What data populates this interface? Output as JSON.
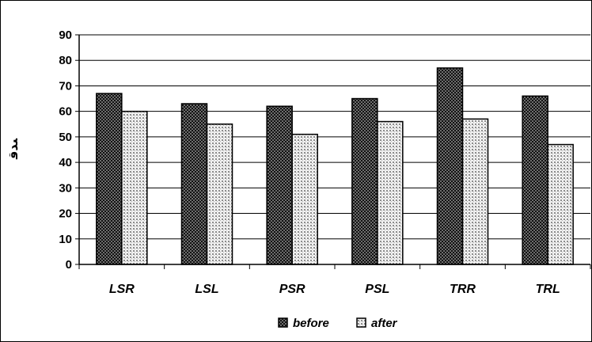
{
  "chart_data": {
    "type": "bar",
    "categories": [
      "LSR",
      "LSL",
      "PSR",
      "PSL",
      "TRR",
      "TRL"
    ],
    "series": [
      {
        "name": "before",
        "values": [
          67,
          63,
          62,
          65,
          77,
          66
        ],
        "color": "#1a1a1a",
        "pattern": "dark-checker"
      },
      {
        "name": "after",
        "values": [
          60,
          55,
          51,
          56,
          57,
          47
        ],
        "color": "#d9d9d9",
        "pattern": "light-dots"
      }
    ],
    "ylim": [
      0,
      90
    ],
    "yticks": [
      "0",
      "10",
      "20",
      "30",
      "40",
      "50",
      "60",
      "70",
      "80",
      "90"
    ],
    "ylabel": "ﯩﺪﻗ",
    "xlabel": "",
    "title": "",
    "grid": true,
    "legend_position": "bottom"
  }
}
